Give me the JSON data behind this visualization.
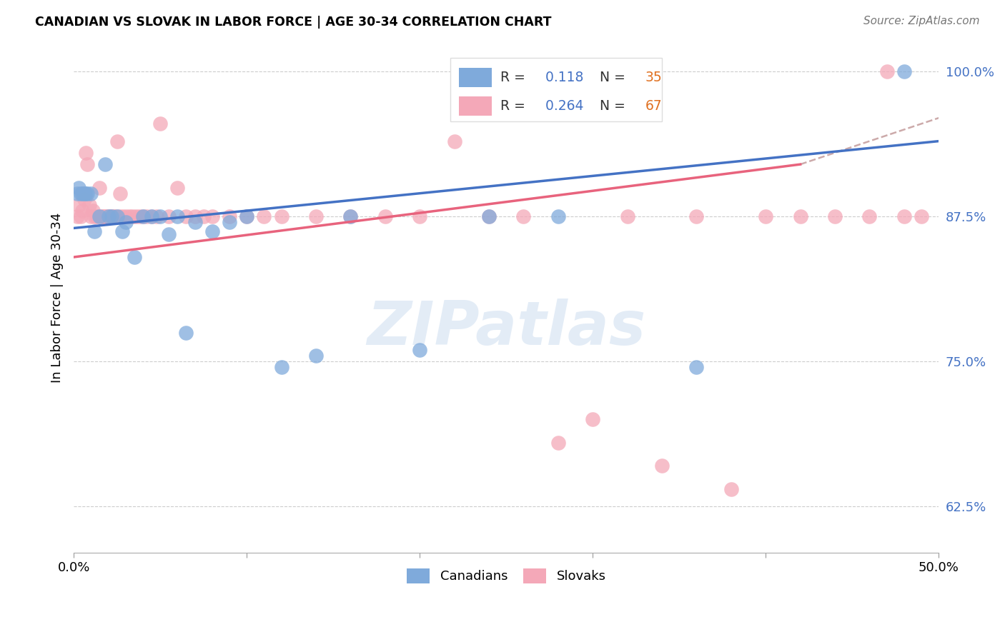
{
  "title": "CANADIAN VS SLOVAK IN LABOR FORCE | AGE 30-34 CORRELATION CHART",
  "source": "Source: ZipAtlas.com",
  "ylabel": "In Labor Force | Age 30-34",
  "xlim": [
    0.0,
    0.5
  ],
  "ylim": [
    0.585,
    1.025
  ],
  "yticks": [
    0.625,
    0.75,
    0.875,
    1.0
  ],
  "ytick_labels": [
    "62.5%",
    "75.0%",
    "87.5%",
    "100.0%"
  ],
  "xticks": [
    0.0,
    0.1,
    0.2,
    0.3,
    0.4,
    0.5
  ],
  "xtick_labels": [
    "0.0%",
    "",
    "",
    "",
    "",
    "50.0%"
  ],
  "canadian_color": "#7faadb",
  "slovak_color": "#f4a8b8",
  "canadian_line_color": "#4472c4",
  "slovak_line_color": "#e8637d",
  "canadian_R": 0.118,
  "canadian_N": 35,
  "slovak_R": 0.264,
  "slovak_N": 67,
  "legend_label_canadian": "Canadians",
  "legend_label_slovak": "Slovaks",
  "watermark": "ZIPatlas",
  "N_color": "#e07020",
  "legend_text_color": "#333333",
  "legend_value_color": "#4472c4",
  "canadian_x": [
    0.002,
    0.003,
    0.004,
    0.005,
    0.006,
    0.007,
    0.008,
    0.01,
    0.012,
    0.015,
    0.018,
    0.02,
    0.022,
    0.025,
    0.028,
    0.03,
    0.035,
    0.04,
    0.045,
    0.05,
    0.055,
    0.06,
    0.065,
    0.07,
    0.08,
    0.09,
    0.1,
    0.12,
    0.14,
    0.16,
    0.2,
    0.24,
    0.28,
    0.36,
    0.48
  ],
  "canadian_y": [
    0.895,
    0.9,
    0.895,
    0.895,
    0.895,
    0.895,
    0.895,
    0.895,
    0.862,
    0.875,
    0.92,
    0.875,
    0.875,
    0.875,
    0.862,
    0.87,
    0.84,
    0.875,
    0.875,
    0.875,
    0.86,
    0.875,
    0.775,
    0.87,
    0.862,
    0.87,
    0.875,
    0.745,
    0.755,
    0.875,
    0.76,
    0.875,
    0.875,
    0.745,
    1.0
  ],
  "slovak_x": [
    0.002,
    0.003,
    0.004,
    0.005,
    0.006,
    0.007,
    0.008,
    0.009,
    0.01,
    0.011,
    0.012,
    0.013,
    0.014,
    0.015,
    0.016,
    0.017,
    0.018,
    0.019,
    0.02,
    0.021,
    0.022,
    0.023,
    0.024,
    0.025,
    0.026,
    0.027,
    0.028,
    0.03,
    0.032,
    0.034,
    0.036,
    0.038,
    0.04,
    0.042,
    0.045,
    0.048,
    0.05,
    0.055,
    0.06,
    0.065,
    0.07,
    0.075,
    0.08,
    0.09,
    0.1,
    0.11,
    0.12,
    0.14,
    0.16,
    0.18,
    0.2,
    0.22,
    0.24,
    0.26,
    0.28,
    0.3,
    0.32,
    0.34,
    0.36,
    0.38,
    0.4,
    0.42,
    0.44,
    0.46,
    0.47,
    0.48,
    0.49
  ],
  "slovak_y": [
    0.875,
    0.885,
    0.875,
    0.88,
    0.89,
    0.93,
    0.92,
    0.885,
    0.875,
    0.88,
    0.875,
    0.875,
    0.875,
    0.9,
    0.875,
    0.875,
    0.875,
    0.875,
    0.875,
    0.875,
    0.875,
    0.875,
    0.875,
    0.94,
    0.875,
    0.895,
    0.875,
    0.875,
    0.875,
    0.875,
    0.875,
    0.875,
    0.875,
    0.875,
    0.875,
    0.875,
    0.955,
    0.875,
    0.9,
    0.875,
    0.875,
    0.875,
    0.875,
    0.875,
    0.875,
    0.875,
    0.875,
    0.875,
    0.875,
    0.875,
    0.875,
    0.94,
    0.875,
    0.875,
    0.68,
    0.7,
    0.875,
    0.66,
    0.875,
    0.64,
    0.875,
    0.875,
    0.875,
    0.875,
    1.0,
    0.875,
    0.875
  ]
}
